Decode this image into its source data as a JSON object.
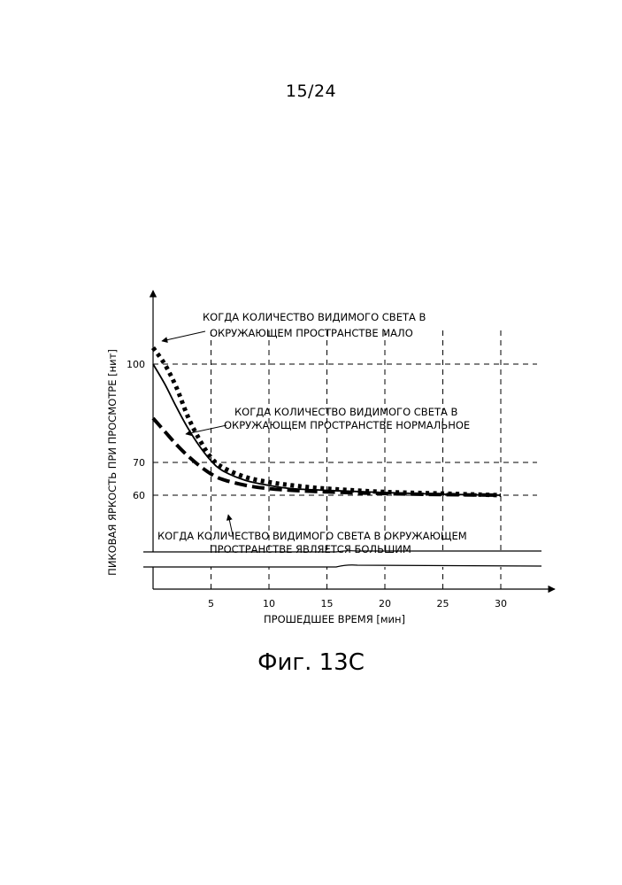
{
  "page_number": "15/24",
  "caption": "Фиг. 13С",
  "chart_data": {
    "type": "line",
    "title": "",
    "xlabel": "ПРОШЕДШЕЕ ВРЕМЯ [мин]",
    "ylabel": "ПИКОВАЯ ЯРКОСТЬ ПРИ ПРОСМОТРЕ [нит]",
    "xlim": [
      0,
      35
    ],
    "ylim": [
      54,
      110
    ],
    "x_ticks": [
      5,
      10,
      15,
      20,
      25,
      30
    ],
    "y_ticks": [
      60,
      70,
      100
    ],
    "y_axis_break": true,
    "grid": "dashed",
    "series": [
      {
        "label_lines": [
          "КОГДА КОЛИЧЕСТВО ВИДИМОГО СВЕТА В",
          "ОКРУЖАЮЩЕМ ПРОСТРАНСТВЕ МАЛО"
        ],
        "line_style": "dotted",
        "x": [
          0,
          1,
          2,
          3,
          4,
          5,
          6,
          8,
          10,
          12,
          15,
          20,
          25,
          30
        ],
        "y": [
          105,
          100,
          93,
          84,
          77,
          71.5,
          68.5,
          65.5,
          64,
          63,
          62,
          61,
          60.5,
          60
        ]
      },
      {
        "label_lines": [
          "КОГДА КОЛИЧЕСТВО ВИДИМОГО СВЕТА В",
          "ОКРУЖАЮЩЕМ ПРОСТРАНСТВЕ НОРМАЛЬНОЕ"
        ],
        "line_style": "solid",
        "x": [
          0,
          1,
          2,
          3,
          4,
          5,
          6,
          8,
          10,
          12,
          15,
          20,
          25,
          30
        ],
        "y": [
          100,
          94,
          87,
          80.5,
          75,
          70.5,
          67.5,
          64.5,
          63,
          62,
          61.5,
          60.8,
          60.3,
          60
        ]
      },
      {
        "label_lines": [
          "КОГДА КОЛИЧЕСТВО ВИДИМОГО СВЕТА В ОКРУЖАЮЩЕМ",
          "ПРОСТРАНСТВЕ ЯВЛЯЕТСЯ БОЛЬШИМ"
        ],
        "line_style": "dashed",
        "x": [
          0,
          1,
          2,
          3,
          4,
          5,
          6,
          8,
          10,
          12,
          15,
          20,
          25,
          30
        ],
        "y": [
          83.5,
          79.5,
          75.5,
          72,
          69,
          66.5,
          64.8,
          63,
          62,
          61.5,
          61,
          60.5,
          60.2,
          60
        ]
      }
    ]
  }
}
